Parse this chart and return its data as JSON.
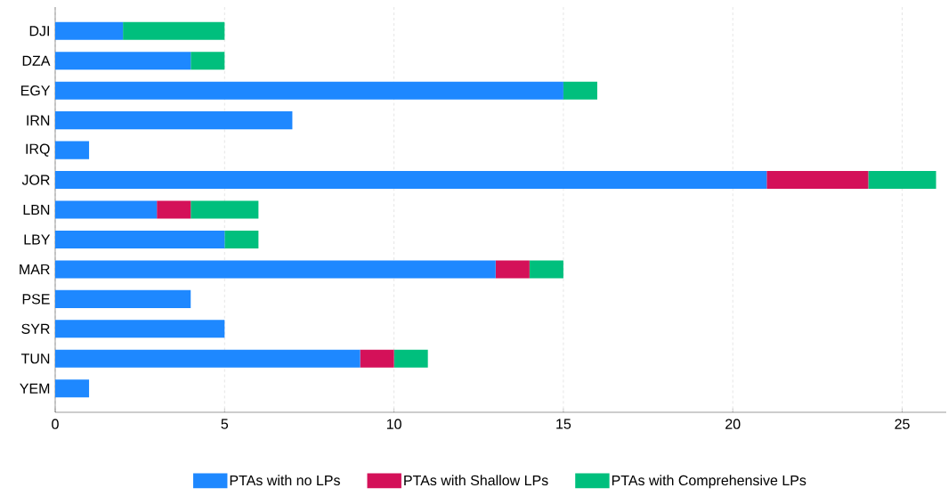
{
  "chart_data": {
    "type": "bar",
    "orientation": "horizontal",
    "stacked": true,
    "categories": [
      "DJI",
      "DZA",
      "EGY",
      "IRN",
      "IRQ",
      "JOR",
      "LBN",
      "LBY",
      "MAR",
      "PSE",
      "SYR",
      "TUN",
      "YEM"
    ],
    "series": [
      {
        "name": "PTAs with no LPs",
        "color": "#1e88ff",
        "values": [
          2,
          4,
          15,
          7,
          1,
          21,
          3,
          5,
          13,
          4,
          5,
          9,
          1
        ]
      },
      {
        "name": "PTAs with Shallow LPs",
        "color": "#d41159",
        "values": [
          0,
          0,
          0,
          0,
          0,
          3,
          1,
          0,
          1,
          0,
          0,
          1,
          0
        ]
      },
      {
        "name": "PTAs with Comprehensive LPs",
        "color": "#00bf7d",
        "values": [
          3,
          1,
          1,
          0,
          0,
          2,
          2,
          1,
          1,
          0,
          0,
          1,
          0
        ]
      }
    ],
    "xlim": [
      0,
      26.3
    ],
    "xticks": [
      0,
      5,
      10,
      15,
      20,
      25
    ],
    "grid": "x",
    "legend": "bottom"
  }
}
